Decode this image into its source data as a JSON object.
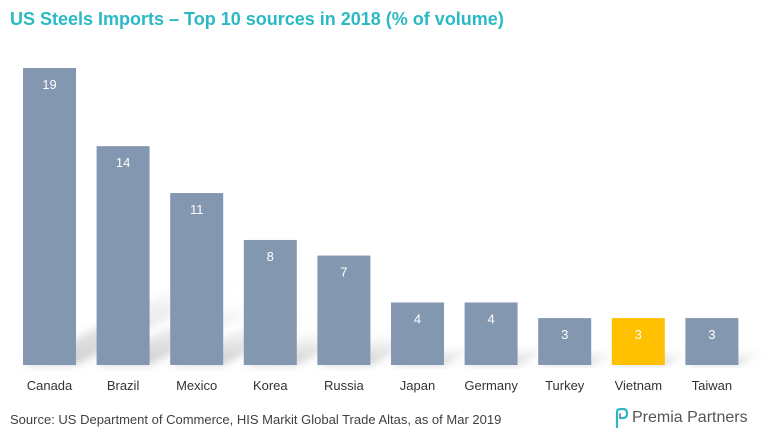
{
  "chart_data": {
    "type": "bar",
    "title": "US Steels Imports – Top 10 sources in 2018 (% of volume)",
    "categories": [
      "Canada",
      "Brazil",
      "Mexico",
      "Korea",
      "Russia",
      "Japan",
      "Germany",
      "Turkey",
      "Vietnam",
      "Taiwan"
    ],
    "values": [
      19,
      14,
      11,
      8,
      7,
      4,
      4,
      3,
      3,
      3
    ],
    "highlight_category": "Vietnam",
    "xlabel": "",
    "ylabel": "",
    "ylim": [
      0,
      19
    ],
    "grid": false,
    "legend": "none",
    "colors": {
      "bar": "#8497b0",
      "highlight": "#ffc000",
      "label": "#ffffff",
      "title": "#2bb9c4"
    }
  },
  "footer": {
    "source": "Source: US Department of Commerce, HIS Markit Global Trade Altas, as of Mar 2019",
    "brand": "Premia Partners"
  }
}
